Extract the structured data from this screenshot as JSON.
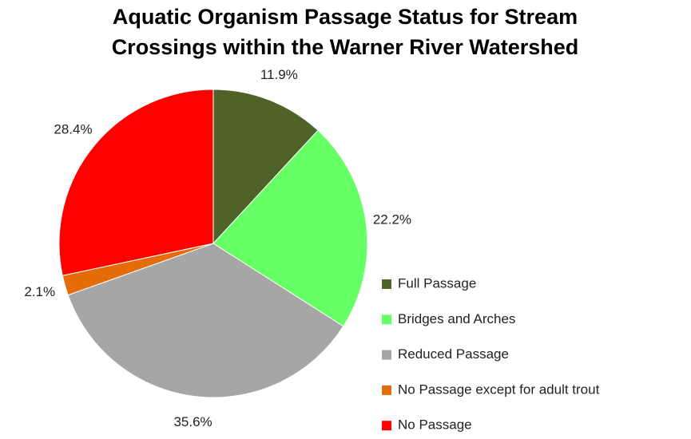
{
  "chart_data": {
    "type": "pie",
    "title": "Aquatic Organism Passage Status for Stream Crossings within the Warner River Watershed",
    "categories": [
      "Full Passage",
      "Bridges and Arches",
      "Reduced Passage",
      "No Passage except for adult trout",
      "No Passage"
    ],
    "values": [
      11.9,
      22.2,
      35.6,
      2.1,
      28.4
    ],
    "value_labels": [
      "11.9%",
      "22.2%",
      "35.6%",
      "2.1%",
      "28.4%"
    ],
    "colors": [
      "#4f6228",
      "#66ff66",
      "#a6a6a6",
      "#e46c0a",
      "#ff0000"
    ],
    "legend": "right"
  }
}
